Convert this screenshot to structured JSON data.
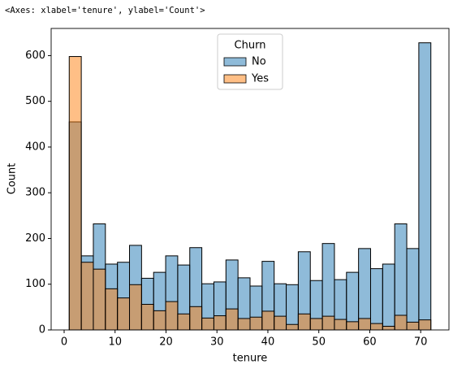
{
  "chart_data": {
    "type": "histogram",
    "annotation": "<Axes: xlabel='tenure', ylabel='Count'>",
    "xlabel": "tenure",
    "ylabel": "Count",
    "bins": [
      1,
      3.3667,
      5.7333,
      8.1,
      10.4667,
      12.8333,
      15.2,
      17.5667,
      19.9333,
      22.3,
      24.6667,
      27.0333,
      29.4,
      31.7667,
      34.1333,
      36.5,
      38.8667,
      41.2333,
      43.6,
      45.9667,
      48.3333,
      50.7,
      53.0667,
      55.4333,
      57.8,
      60.1667,
      62.5333,
      64.9,
      67.2667,
      69.6333,
      72
    ],
    "series": [
      {
        "name": "No",
        "color": "#1f77b4",
        "values": [
          455,
          162,
          232,
          144,
          148,
          185,
          113,
          126,
          162,
          142,
          180,
          101,
          105,
          153,
          114,
          96,
          150,
          101,
          99,
          171,
          108,
          189,
          110,
          126,
          178,
          134,
          144,
          232,
          178,
          628
        ]
      },
      {
        "name": "Yes",
        "color": "#ff7f0e",
        "values": [
          598,
          148,
          133,
          90,
          70,
          99,
          56,
          42,
          62,
          35,
          51,
          26,
          31,
          46,
          25,
          28,
          41,
          30,
          12,
          35,
          25,
          30,
          23,
          18,
          25,
          14,
          8,
          32,
          17,
          22
        ]
      }
    ],
    "legend_title": "Churn",
    "legend": "upper center",
    "xlim": [
      -2.55,
      75.55
    ],
    "ylim": [
      0,
      659.4
    ],
    "xticks": [
      0,
      10,
      20,
      30,
      40,
      50,
      60,
      70
    ],
    "yticks": [
      0,
      100,
      200,
      300,
      400,
      500,
      600
    ],
    "grid": false
  }
}
